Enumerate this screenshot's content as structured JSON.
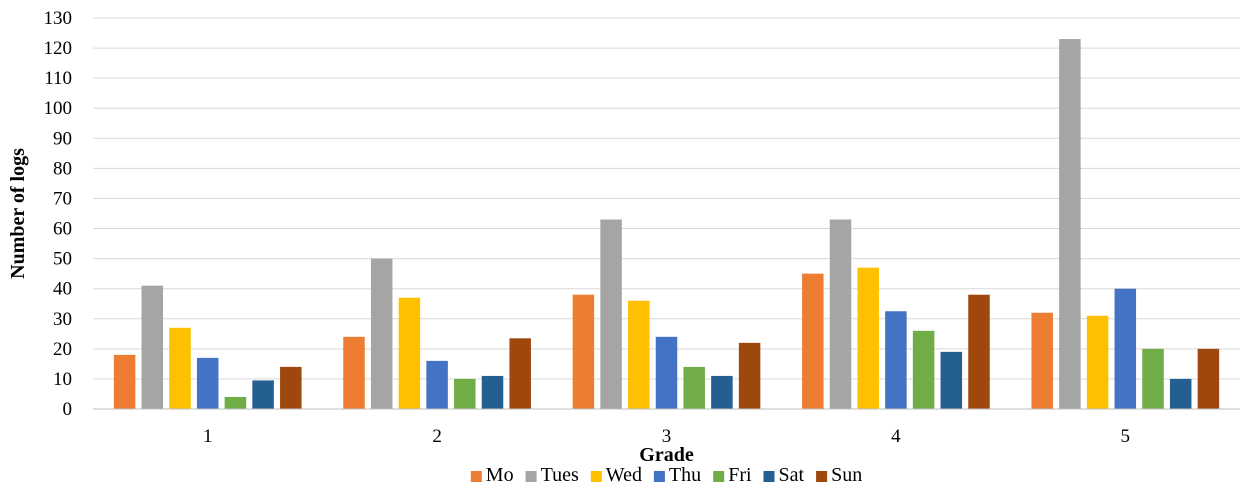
{
  "chart_data": {
    "type": "bar",
    "title": "",
    "xlabel": "Grade",
    "ylabel": "Number of logs",
    "ylim": [
      0,
      130
    ],
    "ytick_step": 10,
    "grid": true,
    "legend_position": "bottom",
    "categories": [
      "1",
      "2",
      "3",
      "4",
      "5"
    ],
    "series": [
      {
        "name": "Mo",
        "color": "#ED7D31",
        "values": [
          18,
          24,
          38,
          45,
          32
        ]
      },
      {
        "name": "Tues",
        "color": "#A5A5A5",
        "values": [
          41,
          50,
          63,
          63,
          123
        ]
      },
      {
        "name": "Wed",
        "color": "#FFC000",
        "values": [
          27,
          37,
          36,
          47,
          31
        ]
      },
      {
        "name": "Thu",
        "color": "#4472C4",
        "values": [
          17,
          16,
          24,
          32.5,
          40
        ]
      },
      {
        "name": "Fri",
        "color": "#70AD47",
        "values": [
          4,
          10,
          14,
          26,
          20
        ]
      },
      {
        "name": "Sat",
        "color": "#255E91",
        "values": [
          9.5,
          11,
          11,
          19,
          10
        ]
      },
      {
        "name": "Sun",
        "color": "#9E480E",
        "values": [
          14,
          23.5,
          22,
          38,
          20
        ]
      }
    ]
  }
}
